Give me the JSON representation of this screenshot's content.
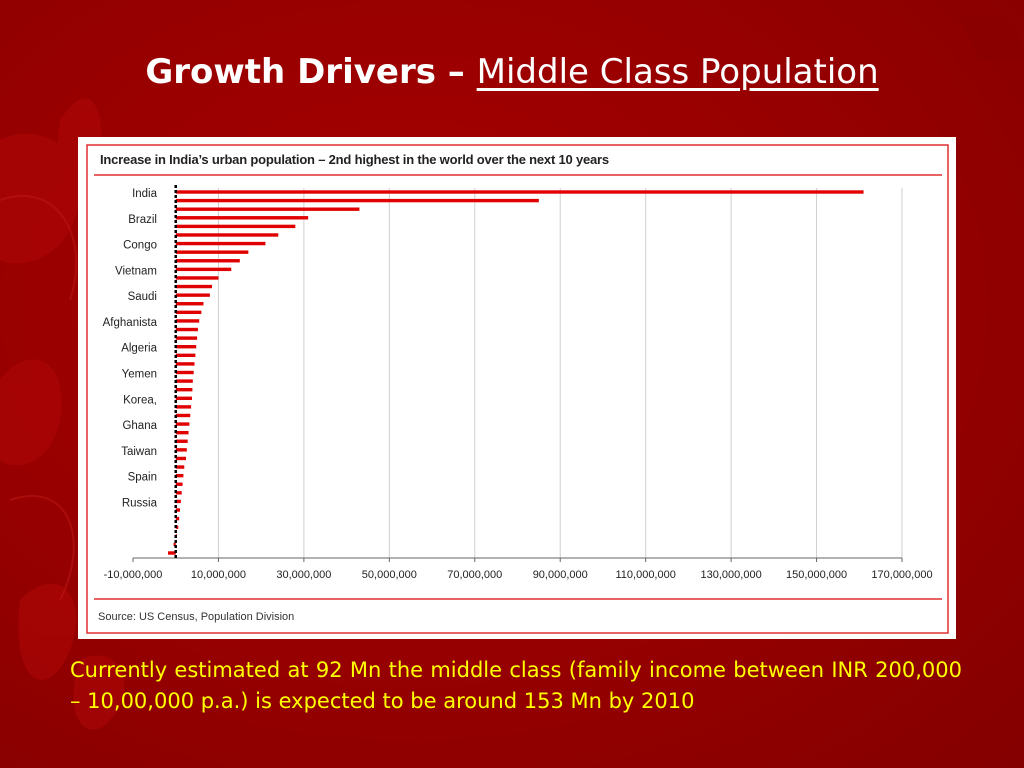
{
  "slide": {
    "title_bold": "Growth Drivers – ",
    "title_rest": "Middle Class Population",
    "caption": "Currently estimated at 92 Mn the middle class (family income between INR 200,000 – 10,00,000 p.a.) is expected to be around 153 Mn by 2010"
  },
  "colors": {
    "background": "#9b0000",
    "bar": "#e00000",
    "caption": "#ffff00",
    "frame": "#e03030"
  },
  "chart_data": {
    "type": "bar",
    "orientation": "horizontal",
    "title": "Increase in India’s urban population – 2nd highest in the world over the next 10 years",
    "source": "Source: US Census, Population Division",
    "category_labels": [
      "India",
      "Brazil",
      "Congo",
      "Vietnam",
      "Saudi",
      "Afghanista",
      "Algeria",
      "Yemen",
      "Korea,",
      "Ghana",
      "Taiwan",
      "Spain",
      "Russia"
    ],
    "values": [
      161000000,
      85000000,
      43000000,
      31000000,
      28000000,
      24000000,
      21000000,
      17000000,
      15000000,
      13000000,
      10000000,
      8500000,
      8000000,
      6500000,
      6000000,
      5500000,
      5200000,
      5000000,
      4800000,
      4600000,
      4400000,
      4200000,
      4000000,
      3900000,
      3800000,
      3600000,
      3400000,
      3200000,
      3000000,
      2800000,
      2600000,
      2400000,
      2000000,
      1800000,
      1600000,
      1400000,
      1200000,
      1000000,
      800000,
      600000,
      200000,
      -500000,
      -1800000
    ],
    "xlim": [
      -10000000,
      170000000
    ],
    "x_ticks": [
      -10000000,
      10000000,
      30000000,
      50000000,
      70000000,
      90000000,
      110000000,
      130000000,
      150000000,
      170000000
    ],
    "x_tick_labels": [
      "-10,000,000",
      "10,000,000",
      "30,000,000",
      "50,000,000",
      "70,000,000",
      "90,000,000",
      "110,000,000",
      "130,000,000",
      "150,000,000",
      "170,000,000"
    ],
    "grid": true,
    "legend": "none"
  }
}
